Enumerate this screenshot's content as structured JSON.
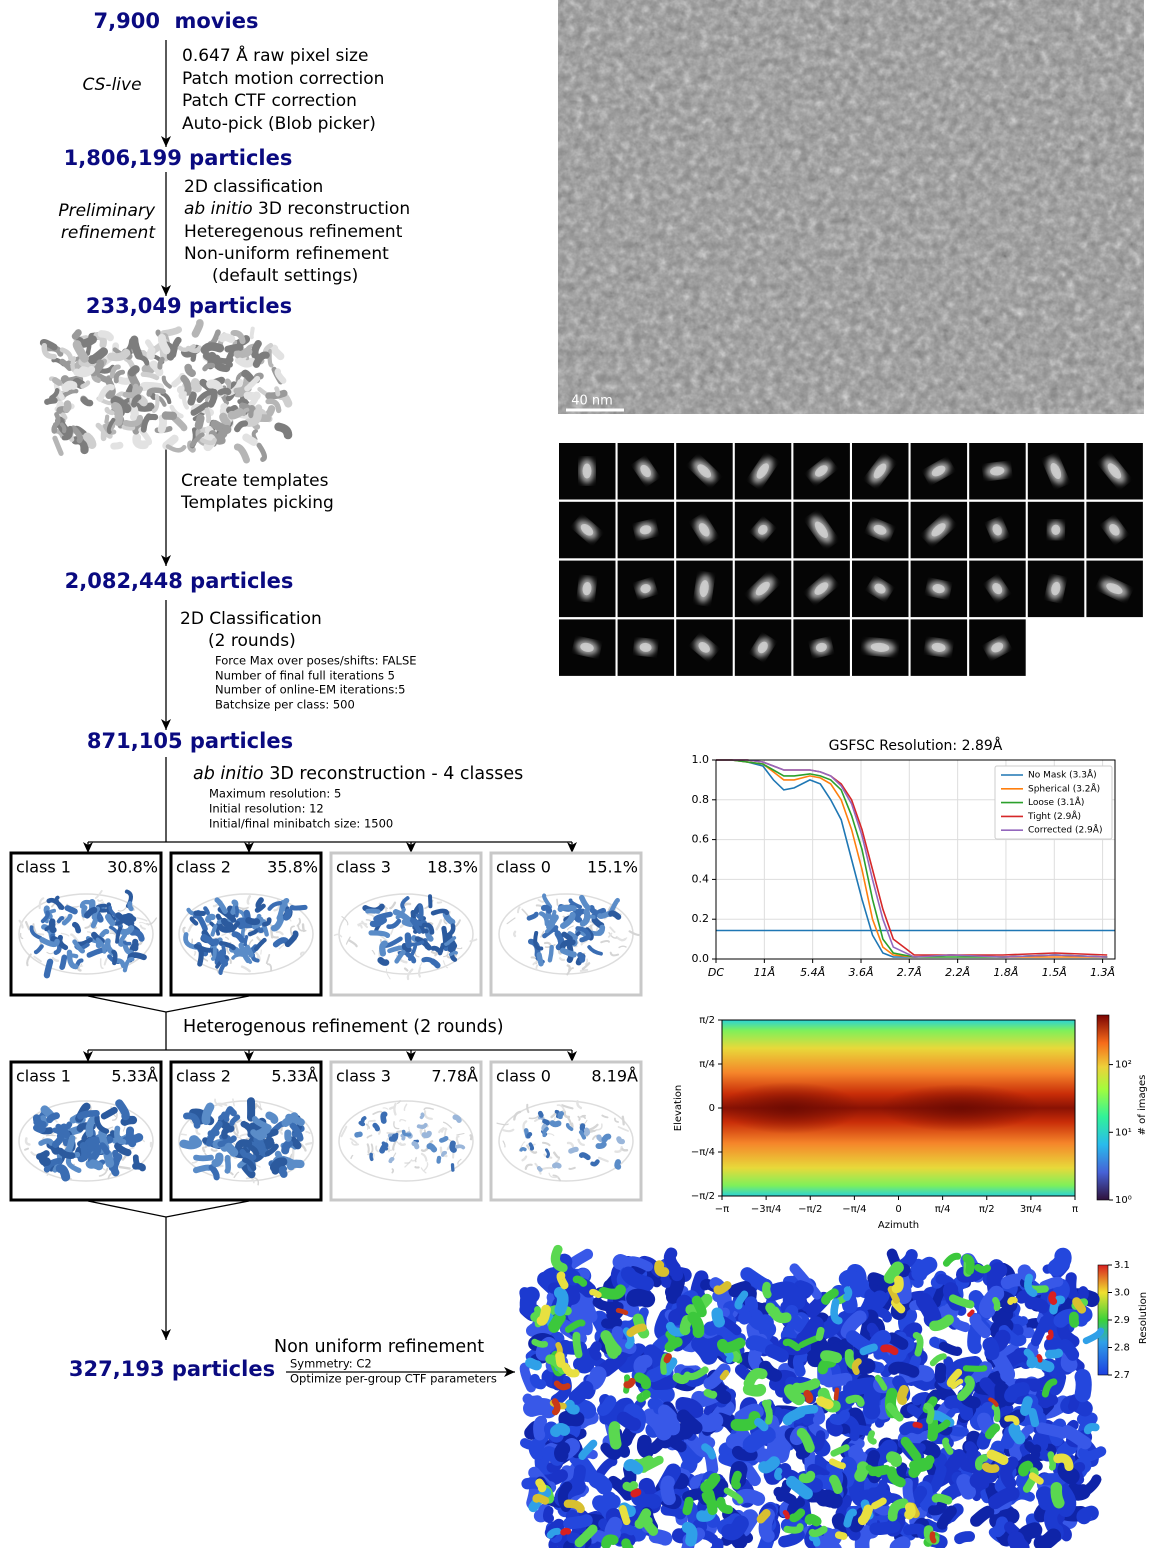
{
  "workflow": {
    "start": "7,900  movies",
    "cs_live": {
      "label": "CS-live",
      "steps": [
        "0.647 Å raw pixel size",
        "Patch motion correction",
        "Patch CTF correction",
        "Auto-pick (Blob picker)"
      ],
      "result": "1,806,199 particles"
    },
    "preliminary": {
      "label": [
        "Preliminary",
        "refinement"
      ],
      "steps": [
        "2D classification",
        {
          "italic": "ab initio",
          "text": " 3D reconstruction"
        },
        "Heteregenous refinement",
        "Non-uniform refinement",
        "(default settings)"
      ],
      "result": "233,049 particles"
    },
    "templates": {
      "steps": [
        "Create templates",
        "Templates picking"
      ],
      "result": "2,082,448 particles"
    },
    "classification_2d": {
      "steps": [
        "2D Classification",
        "(2 rounds)"
      ],
      "params": [
        "Force Max over poses/shifts: FALSE",
        "Number of final full iterations 5",
        "Number of online-EM iterations:5",
        "Batchsize per class: 500"
      ],
      "result": "871,105 particles"
    },
    "ab_initio": {
      "title": {
        "italic": "ab initio",
        "text": " 3D reconstruction - 4 classes"
      },
      "params": [
        "Maximum resolution: 5",
        "Initial resolution: 12",
        "Initial/final minibatch size: 1500"
      ],
      "classes": [
        {
          "name": "class 1",
          "value": "30.8%"
        },
        {
          "name": "class 2",
          "value": "35.8%"
        },
        {
          "name": "class 3",
          "value": "18.3%"
        },
        {
          "name": "class 0",
          "value": "15.1%"
        }
      ]
    },
    "heterogeneous": {
      "title": "Heterogenous refinement (2 rounds)",
      "classes": [
        {
          "name": "class 1",
          "value": "5.33Å"
        },
        {
          "name": "class 2",
          "value": "5.33Å"
        },
        {
          "name": "class 3",
          "value": "7.78Å"
        },
        {
          "name": "class 0",
          "value": "8.19Å"
        }
      ]
    },
    "non_uniform": {
      "title": "Non uniform refinement",
      "params": [
        "Symmetry: C2",
        "Optimize per-group CTF parameters"
      ],
      "result": "327,193 particles"
    }
  },
  "micrograph": {
    "scale_bar": "40 nm"
  },
  "fsc_chart": {
    "type": "line",
    "title": "GSFSC Resolution: 2.89Å",
    "x": [
      0,
      0.03,
      0.06,
      0.09,
      0.11,
      0.13,
      0.15,
      0.18,
      0.2,
      0.22,
      0.24,
      0.26,
      0.28,
      0.3,
      0.32,
      0.34,
      0.38,
      0.45,
      0.55,
      0.65,
      0.75
    ],
    "series": [
      {
        "name": "No Mask (3.3Å)",
        "color": "#1f77b4",
        "values": [
          1,
          1,
          0.99,
          0.97,
          0.9,
          0.85,
          0.86,
          0.9,
          0.88,
          0.8,
          0.7,
          0.5,
          0.3,
          0.12,
          0.03,
          0.01,
          0.01,
          0.02,
          0.01,
          0.02,
          0.01
        ]
      },
      {
        "name": "Spherical (3.2Å)",
        "color": "#ff7f0e",
        "values": [
          1,
          1,
          0.99,
          0.98,
          0.94,
          0.9,
          0.9,
          0.92,
          0.91,
          0.88,
          0.8,
          0.65,
          0.45,
          0.2,
          0.06,
          0.02,
          0.01,
          0.02,
          0.01,
          0.01,
          0.01
        ]
      },
      {
        "name": "Loose (3.1Å)",
        "color": "#2ca02c",
        "values": [
          1,
          1,
          0.99,
          0.98,
          0.95,
          0.92,
          0.92,
          0.93,
          0.92,
          0.9,
          0.85,
          0.72,
          0.55,
          0.3,
          0.1,
          0.03,
          0.01,
          0.01,
          0.01,
          0.02,
          0.01
        ]
      },
      {
        "name": "Tight (2.9Å)",
        "color": "#d62728",
        "values": [
          1,
          1,
          1,
          0.99,
          0.97,
          0.95,
          0.95,
          0.95,
          0.94,
          0.92,
          0.88,
          0.8,
          0.65,
          0.45,
          0.25,
          0.1,
          0.02,
          0.02,
          0.02,
          0.03,
          0.02
        ]
      },
      {
        "name": "Corrected (2.9Å)",
        "color": "#9467bd",
        "values": [
          1,
          1,
          1,
          0.99,
          0.97,
          0.95,
          0.95,
          0.95,
          0.94,
          0.92,
          0.87,
          0.78,
          0.62,
          0.4,
          0.2,
          0.06,
          0.01,
          0.02,
          0.01,
          0.02,
          0.01
        ]
      }
    ],
    "xlim": [
      0,
      0.765
    ],
    "ylim": [
      0,
      1
    ],
    "xticks": [
      {
        "value": 0,
        "label": "DC"
      },
      {
        "value": 0.0927,
        "label": "11Å"
      },
      {
        "value": 0.1853,
        "label": "5.4Å"
      },
      {
        "value": 0.278,
        "label": "3.6Å"
      },
      {
        "value": 0.3706,
        "label": "2.7Å"
      },
      {
        "value": 0.4633,
        "label": "2.2Å"
      },
      {
        "value": 0.5559,
        "label": "1.8Å"
      },
      {
        "value": 0.6486,
        "label": "1.5Å"
      },
      {
        "value": 0.7412,
        "label": "1.3Å"
      }
    ],
    "yticks": [
      {
        "value": 0,
        "label": "0.0"
      },
      0.2,
      0.4,
      0.6,
      0.8,
      {
        "value": 1,
        "label": "1.0"
      }
    ],
    "threshold": 0.143,
    "threshold_color": "#1f77b4",
    "grid": true,
    "legend": "upper right"
  },
  "viewing_direction": {
    "type": "heatmap",
    "xlabel": "Azimuth",
    "ylabel": "Elevation",
    "xlim": [
      -3.1416,
      3.1416
    ],
    "ylim": [
      -1.5708,
      1.5708
    ],
    "xticks": [
      {
        "value": -3.1416,
        "label": "−π"
      },
      {
        "value": -2.3562,
        "label": "−3π/4"
      },
      {
        "value": -1.5708,
        "label": "−π/2"
      },
      {
        "value": -0.7854,
        "label": "−π/4"
      },
      0,
      {
        "value": 0.7854,
        "label": "π/4"
      },
      {
        "value": 1.5708,
        "label": "π/2"
      },
      {
        "value": 2.3562,
        "label": "3π/4"
      },
      {
        "value": 3.1416,
        "label": "π"
      }
    ],
    "yticks": [
      {
        "value": -1.5708,
        "label": "−π/2"
      },
      {
        "value": -0.7854,
        "label": "−π/4"
      },
      0,
      {
        "value": 0.7854,
        "label": "π/4"
      },
      {
        "value": 1.5708,
        "label": "π/2"
      }
    ],
    "colorbar": {
      "label": "# of images",
      "scale": "log",
      "ylim": [
        1,
        540
      ],
      "ticks": [
        {
          "value": 1,
          "label": "10⁰"
        },
        {
          "value": 10,
          "label": "10¹"
        },
        {
          "value": 100,
          "label": "10²"
        }
      ]
    }
  },
  "local_resolution": {
    "colorbar": {
      "label": "Resolution",
      "ylim": [
        2.7,
        3.1
      ],
      "ticks": [
        2.7,
        2.8,
        2.9,
        {
          "value": 3,
          "label": "3.0"
        },
        3.1
      ]
    }
  }
}
